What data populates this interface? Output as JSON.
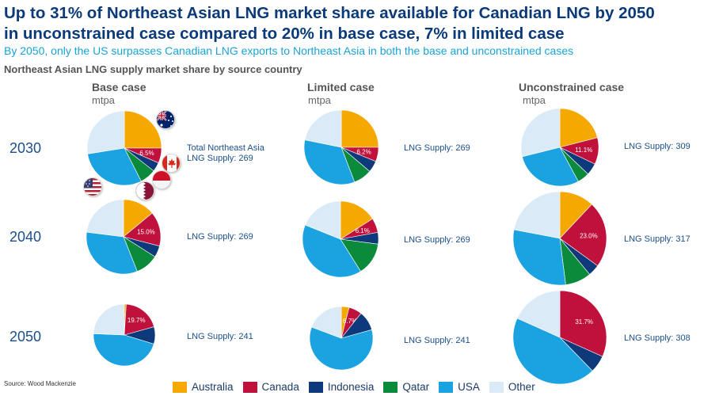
{
  "title_line1": "Up to 31% of Northeast Asian LNG market share available for Canadian LNG by 2050",
  "title_line2": "in unconstrained case compared to 20% in base case, 7% in limited case",
  "subtitle": "By 2050, only the US surpasses Canadian LNG exports to Northeast Asia in both the base and unconstrained cases",
  "section_heading": "Northeast Asian LNG supply market share by source country",
  "source": "Source: Wood Mackenzie",
  "columns": [
    {
      "header": "Base case",
      "unit": "mtpa"
    },
    {
      "header": "Limited case",
      "unit": "mtpa"
    },
    {
      "header": "Unconstrained case",
      "unit": "mtpa"
    }
  ],
  "years": [
    "2030",
    "2040",
    "2050"
  ],
  "supply_labels": {
    "base_2030_line1": "Total Northeast Asia",
    "base_2030_line2": "LNG Supply: 269",
    "base_2040": "LNG Supply: 269",
    "base_2050": "LNG Supply: 241",
    "limited_2030": "LNG Supply: 269",
    "limited_2040": "LNG Supply: 269",
    "limited_2050": "LNG Supply: 241",
    "unconstrained_2030": "LNG Supply: 309",
    "unconstrained_2040": "LNG Supply: 317",
    "unconstrained_2050": "LNG Supply: 308"
  },
  "flags": [
    "australia-flag",
    "canada-flag",
    "indonesia-flag",
    "usa-flag",
    "qatar-flag"
  ],
  "chart_data": {
    "type": "pie",
    "categories": [
      "Australia",
      "Canada",
      "Indonesia",
      "Qatar",
      "USA",
      "Other"
    ],
    "colors": [
      "#f5a800",
      "#c0103c",
      "#0e3a7c",
      "#0c8a3c",
      "#1aa3e0",
      "#daebf7"
    ],
    "pies": [
      {
        "case": "Base case",
        "year": "2030",
        "supply": 269,
        "values": [
          25,
          6.5,
          4,
          7,
          30,
          27.5
        ],
        "canada_label": "6.5%"
      },
      {
        "case": "Limited case",
        "year": "2030",
        "supply": 269,
        "values": [
          25,
          6.2,
          5,
          8,
          34,
          21.8
        ],
        "canada_label": "6.2%"
      },
      {
        "case": "Unconstrained case",
        "year": "2030",
        "supply": 309,
        "values": [
          21,
          11.1,
          5,
          5,
          29,
          28.9
        ],
        "canada_label": "11.1%"
      },
      {
        "case": "Base case",
        "year": "2040",
        "supply": 269,
        "values": [
          14,
          15,
          5,
          10,
          33,
          23
        ],
        "canada_label": "15.0%"
      },
      {
        "case": "Limited case",
        "year": "2040",
        "supply": 269,
        "values": [
          16,
          6.1,
          5,
          14,
          40,
          18.9
        ],
        "canada_label": "6.1%"
      },
      {
        "case": "Unconstrained case",
        "year": "2040",
        "supply": 317,
        "values": [
          12,
          23,
          4,
          9,
          30,
          22
        ],
        "canada_label": "23.0%"
      },
      {
        "case": "Base case",
        "year": "2050",
        "supply": 241,
        "values": [
          1,
          19.7,
          9,
          0,
          46,
          24.3
        ],
        "canada_label": "19.7%"
      },
      {
        "case": "Limited case",
        "year": "2050",
        "supply": 241,
        "values": [
          4,
          6.7,
          10,
          0,
          60,
          19.3
        ],
        "canada_label": "6.7%"
      },
      {
        "case": "Unconstrained case",
        "year": "2050",
        "supply": 308,
        "values": [
          0,
          31.7,
          6,
          0,
          44,
          18.3
        ],
        "canada_label": "31.7%"
      }
    ]
  }
}
